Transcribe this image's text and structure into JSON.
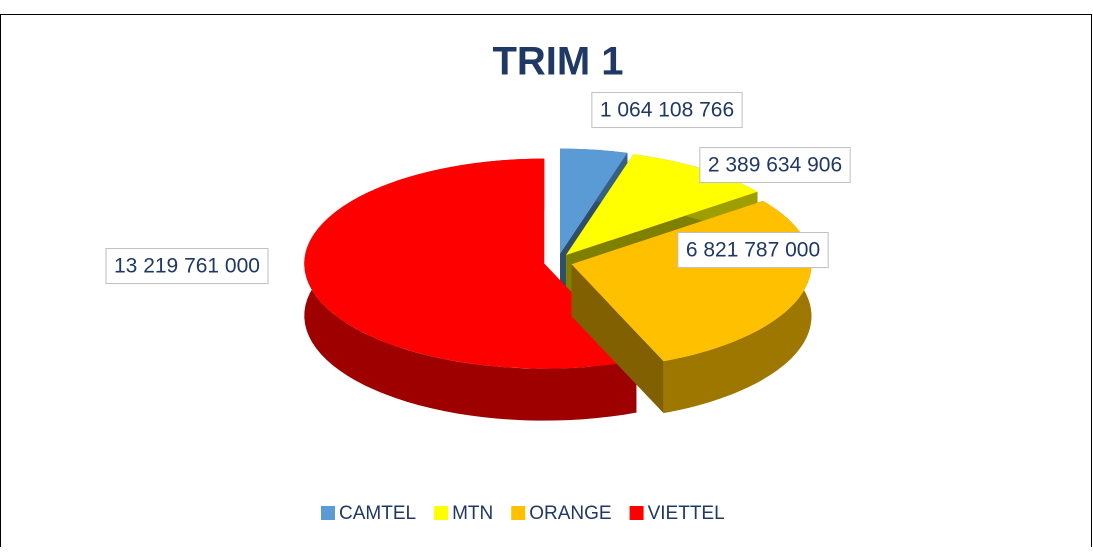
{
  "chart_data": {
    "type": "pie",
    "title": "TRIM 1",
    "categories": [
      "CAMTEL",
      "MTN",
      "ORANGE",
      "VIETTEL"
    ],
    "values": [
      1064108766,
      2389634906,
      6821787000,
      13219761000
    ],
    "value_labels": [
      "1 064 108 766",
      "2 389 634 906",
      "6 821 787 000",
      "13 219 761 000"
    ],
    "colors": [
      "#5b9bd5",
      "#ffff00",
      "#ffc000",
      "#ff0000"
    ],
    "legend": "bottom"
  }
}
